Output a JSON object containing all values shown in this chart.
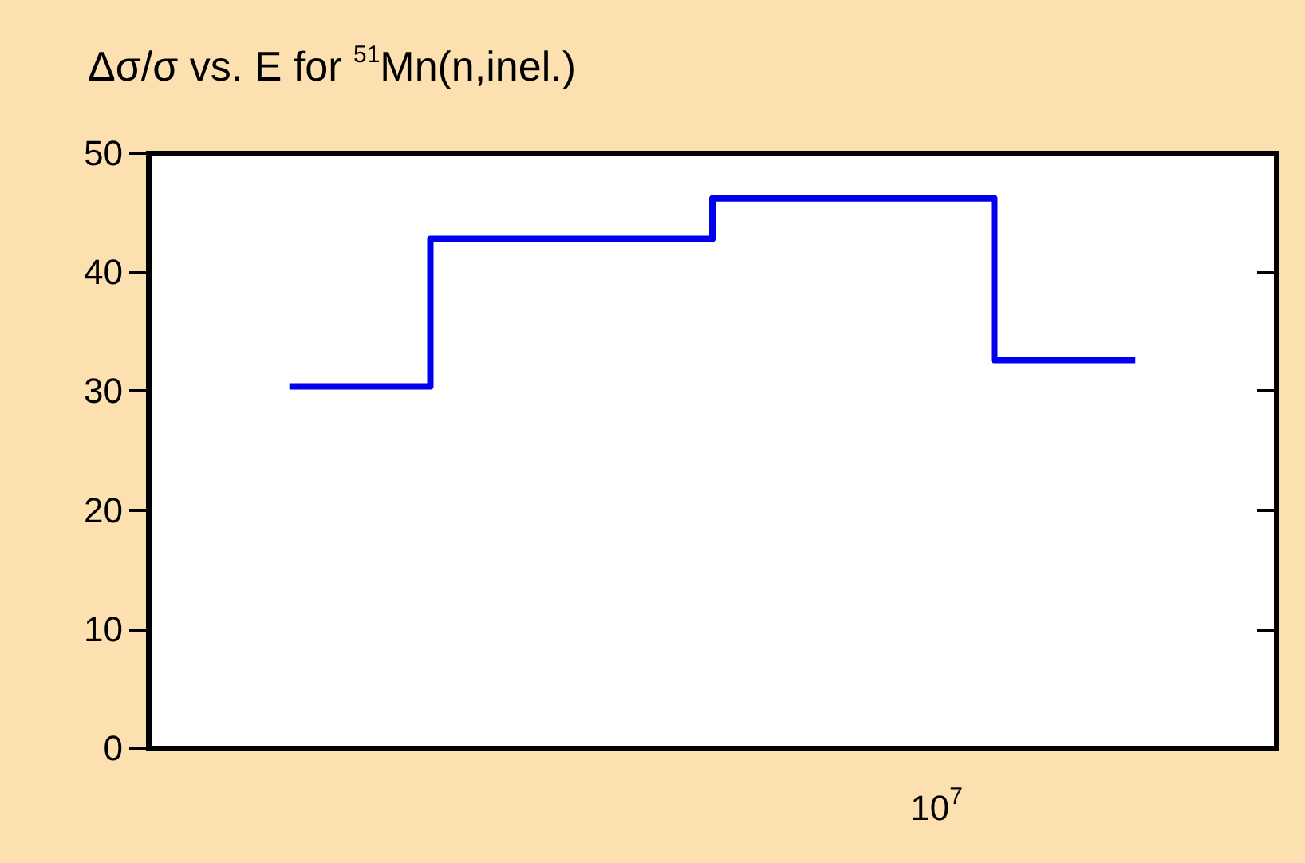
{
  "chart_data": {
    "type": "step",
    "title": "Δσ/σ vs. E for $^{51}$Mn(n,inel.)",
    "categories": [
      null,
      null,
      null,
      null
    ],
    "values": [
      30.4,
      42.8,
      46.2,
      32.6
    ],
    "color": "#0000ee",
    "ylim": [
      0,
      50
    ],
    "yticks": [
      0,
      10,
      20,
      30,
      40,
      50
    ],
    "grid": false,
    "marker": "none",
    "annotations": [
      "10$^{7}$"
    ]
  }
}
